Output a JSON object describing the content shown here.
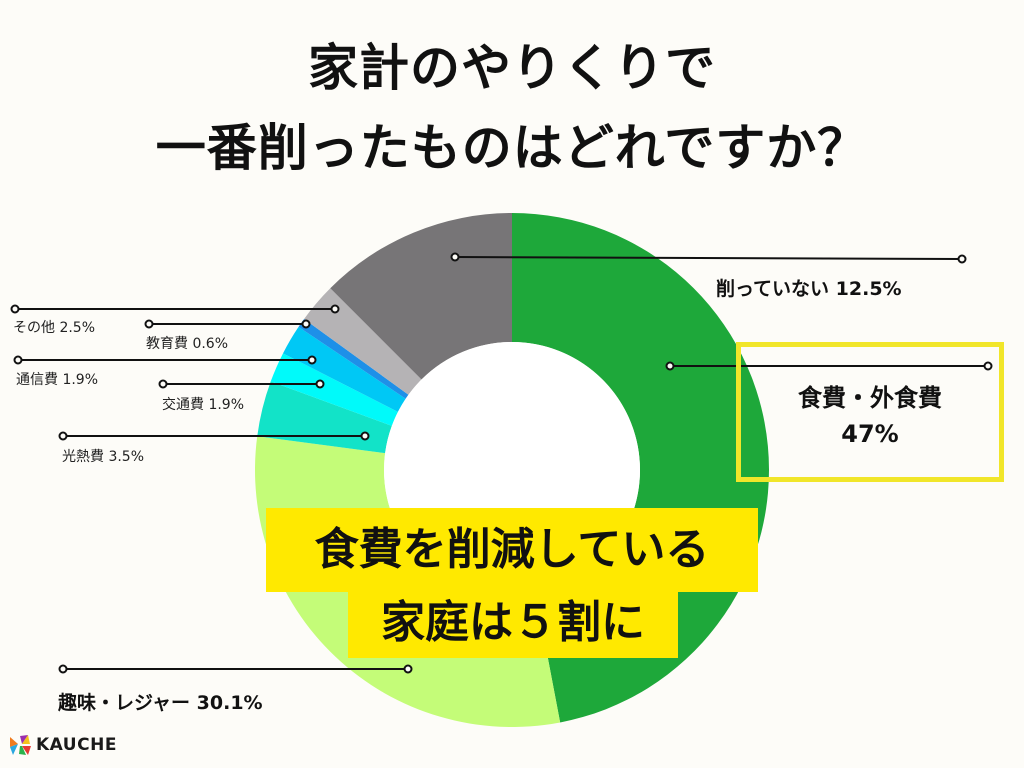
{
  "title": {
    "line1": "家計のやりくりで",
    "line2": "一番削ったものはどれですか？"
  },
  "callout": {
    "line1": "食費を削減している",
    "line2": "家庭は５割に"
  },
  "highlight": {
    "label": "食費・外食費",
    "value": "47%"
  },
  "labels": {
    "not_cut": "削っていない  12.5%",
    "other": "その他 2.5%",
    "education": "教育費 0.6%",
    "telecom": "通信費 1.9%",
    "transport": "交通費 1.9%",
    "utilities": "光熱費 3.5%",
    "hobby": "趣味・レジャー 30.1%"
  },
  "logo": {
    "text": "KAUCHE"
  },
  "chart_data": {
    "type": "pie",
    "donut": true,
    "title": "家計のやりくりで一番削ったものはどれですか？",
    "start_angle": "12 o'clock, clockwise",
    "categories": [
      "食費・外食費",
      "趣味・レジャー",
      "光熱費",
      "交通費",
      "通信費",
      "教育費",
      "その他",
      "削っていない"
    ],
    "values": [
      47.0,
      30.1,
      3.5,
      1.9,
      1.9,
      0.6,
      2.5,
      12.5
    ],
    "unit": "%",
    "colors": [
      "#1ea83a",
      "#c4fc78",
      "#12e3c8",
      "#00fafa",
      "#00c8f5",
      "#1e90e8",
      "#b5b3b5",
      "#777577"
    ],
    "annotation": "食費を削減している家庭は５割に"
  }
}
